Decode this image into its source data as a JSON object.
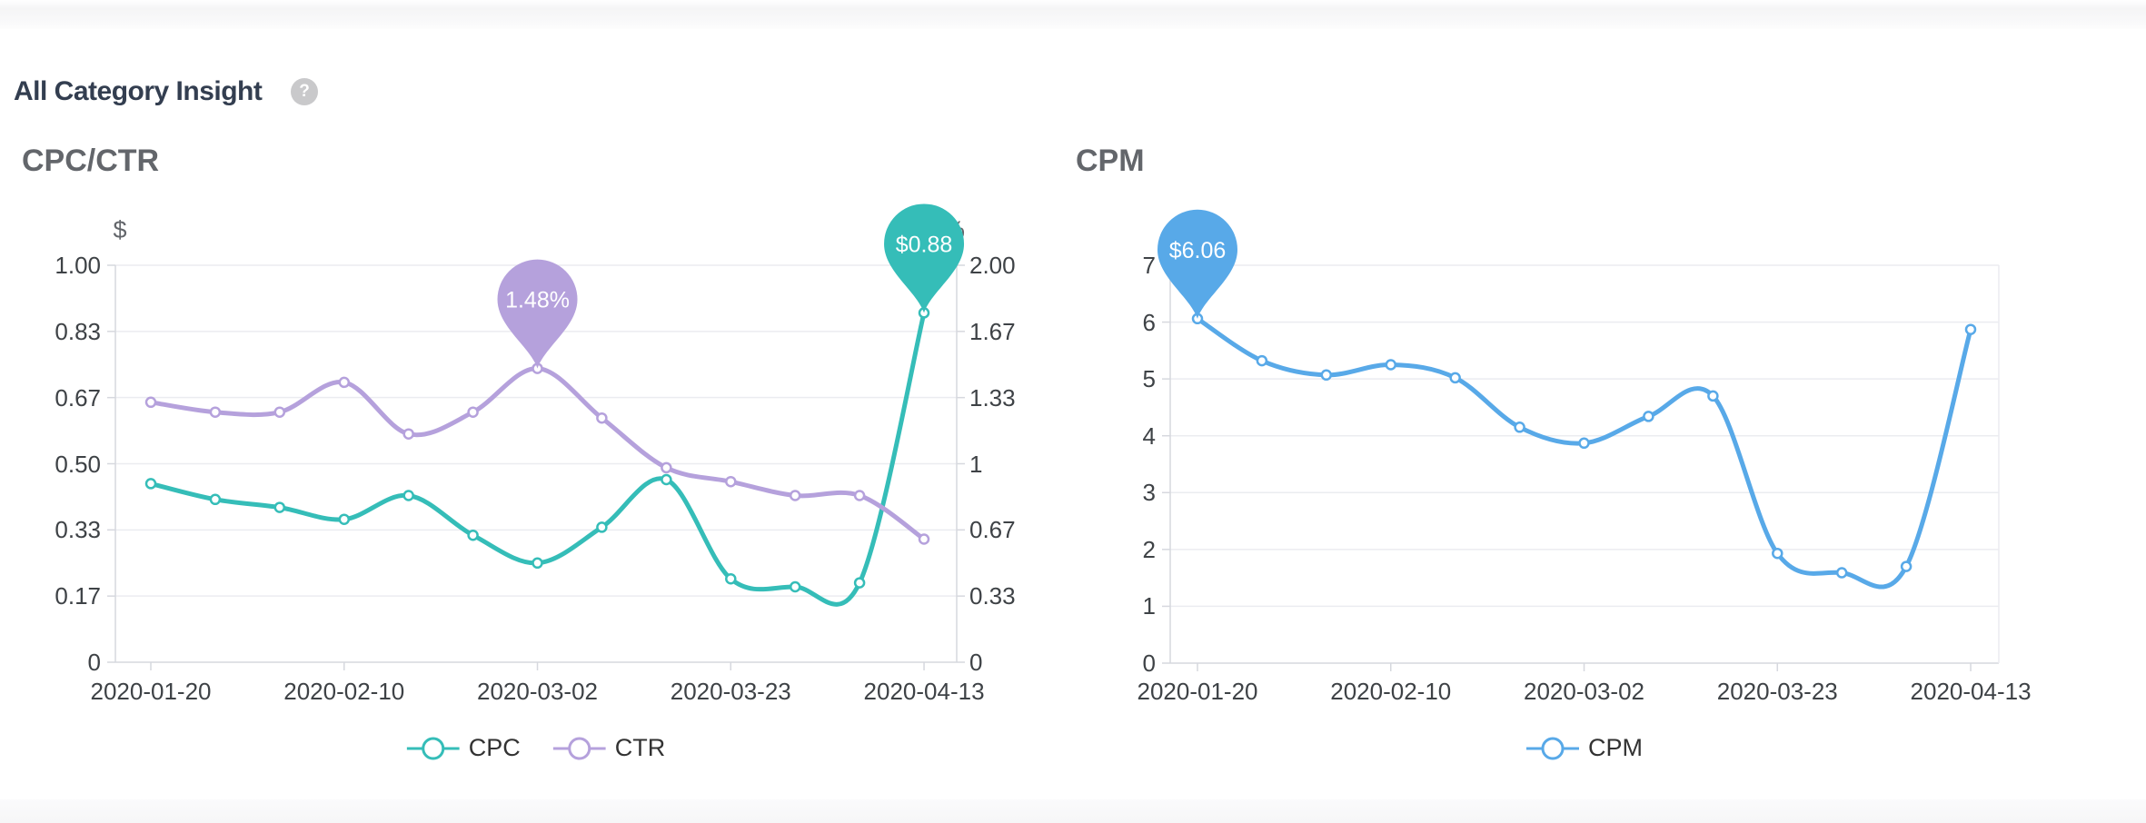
{
  "header": {
    "title": "All Category Insight",
    "help_glyph": "?"
  },
  "chart_data": [
    {
      "type": "line",
      "title": "CPC/CTR",
      "x_points": 13,
      "x_tick_labels": [
        "2020-01-20",
        "2020-02-10",
        "2020-03-02",
        "2020-03-23",
        "2020-04-13"
      ],
      "y_left": {
        "label": "$",
        "max": 1.0,
        "ticks": [
          "1.00",
          "0.83",
          "0.67",
          "0.50",
          "0.33",
          "0.17",
          "0"
        ]
      },
      "y_right": {
        "label": "%",
        "max": 2.0,
        "ticks": [
          "2.00",
          "1.67",
          "1.33",
          "1",
          "0.67",
          "0.33",
          "0"
        ]
      },
      "series": [
        {
          "name": "CPC",
          "axis": "left",
          "color": "#35bdb8",
          "values": [
            0.45,
            0.41,
            0.39,
            0.36,
            0.42,
            0.32,
            0.25,
            0.34,
            0.46,
            0.21,
            0.19,
            0.2,
            0.88
          ]
        },
        {
          "name": "CTR",
          "axis": "right",
          "color": "#b5a1dc",
          "values": [
            1.31,
            1.26,
            1.26,
            1.41,
            1.15,
            1.26,
            1.48,
            1.23,
            0.98,
            0.91,
            0.84,
            0.84,
            0.62
          ]
        }
      ],
      "annotations": [
        {
          "series": "CTR",
          "point_index": 6,
          "label": "1.48%"
        },
        {
          "series": "CPC",
          "point_index": 12,
          "label": "$0.88"
        }
      ],
      "grid": true,
      "legend_position": "bottom"
    },
    {
      "type": "line",
      "title": "CPM",
      "x_points": 13,
      "x_tick_labels": [
        "2020-01-20",
        "2020-02-10",
        "2020-03-02",
        "2020-03-23",
        "2020-04-13"
      ],
      "y_left": {
        "label": "$",
        "max": 7,
        "ticks": [
          "7",
          "6",
          "5",
          "4",
          "3",
          "2",
          "1",
          "0"
        ]
      },
      "series": [
        {
          "name": "CPM",
          "axis": "left",
          "color": "#58a9e8",
          "values": [
            6.06,
            5.32,
            5.07,
            5.25,
            5.02,
            4.15,
            3.87,
            4.34,
            4.7,
            1.93,
            1.59,
            1.7,
            5.87
          ]
        }
      ],
      "annotations": [
        {
          "series": "CPM",
          "point_index": 0,
          "label": "$6.06"
        }
      ],
      "grid": true,
      "legend_position": "bottom"
    }
  ]
}
